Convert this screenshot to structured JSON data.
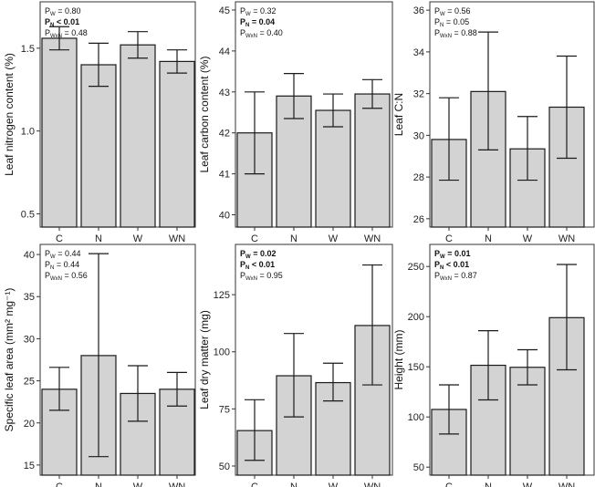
{
  "chart_data": [
    {
      "id": "nitrogen",
      "type": "bar",
      "ylabel": "Leaf nitrogen content (%)",
      "ylim": [
        0.42,
        1.78
      ],
      "yticks": [
        {
          "v": 0.5,
          "label": "0.5"
        },
        {
          "v": 1.0,
          "label": "1.0"
        },
        {
          "v": 1.5,
          "label": "1.5"
        }
      ],
      "categories": [
        "C",
        "N",
        "W",
        "WN"
      ],
      "values": [
        1.56,
        1.4,
        1.52,
        1.42
      ],
      "err_low": [
        1.49,
        1.27,
        1.44,
        1.35
      ],
      "err_high": [
        1.63,
        1.53,
        1.6,
        1.49
      ],
      "stats": [
        {
          "main": "P",
          "sub": "W",
          "value": " = 0.80",
          "bold": false
        },
        {
          "main": "P",
          "sub": "N",
          "value": " < 0.01",
          "bold": true
        },
        {
          "main": "P",
          "sub": "WxN",
          "value": " = 0.48",
          "bold": false
        }
      ]
    },
    {
      "id": "carbon",
      "type": "bar",
      "ylabel": "Leaf carbon content (%)",
      "ylim": [
        39.7,
        45.2
      ],
      "yticks": [
        {
          "v": 40,
          "label": "40"
        },
        {
          "v": 41,
          "label": "41"
        },
        {
          "v": 42,
          "label": "42"
        },
        {
          "v": 43,
          "label": "43"
        },
        {
          "v": 44,
          "label": "44"
        },
        {
          "v": 45,
          "label": "45"
        }
      ],
      "categories": [
        "C",
        "N",
        "W",
        "WN"
      ],
      "values": [
        42.0,
        42.9,
        42.55,
        42.95
      ],
      "err_low": [
        41.0,
        42.35,
        42.15,
        42.6
      ],
      "err_high": [
        43.0,
        43.45,
        42.95,
        43.3
      ],
      "stats": [
        {
          "main": "P",
          "sub": "W",
          "value": " = 0.32",
          "bold": false
        },
        {
          "main": "P",
          "sub": "N",
          "value": " = 0.04",
          "bold": true
        },
        {
          "main": "P",
          "sub": "WxN",
          "value": " = 0.40",
          "bold": false
        }
      ]
    },
    {
      "id": "cn",
      "type": "bar",
      "ylabel": "Leaf C:N",
      "ylim": [
        25.6,
        36.4
      ],
      "yticks": [
        {
          "v": 26,
          "label": "26"
        },
        {
          "v": 28,
          "label": "28"
        },
        {
          "v": 30,
          "label": "30"
        },
        {
          "v": 32,
          "label": "32"
        },
        {
          "v": 34,
          "label": "34"
        },
        {
          "v": 36,
          "label": "36"
        }
      ],
      "categories": [
        "C",
        "N",
        "W",
        "WN"
      ],
      "values": [
        29.8,
        32.1,
        29.35,
        31.35
      ],
      "err_low": [
        27.85,
        29.3,
        27.85,
        28.9
      ],
      "err_high": [
        31.8,
        34.95,
        30.9,
        33.8
      ],
      "stats": [
        {
          "main": "P",
          "sub": "W",
          "value": " = 0.56",
          "bold": false
        },
        {
          "main": "P",
          "sub": "N",
          "value": " = 0.05",
          "bold": false
        },
        {
          "main": "P",
          "sub": "WxN",
          "value": " = 0.88",
          "bold": false
        }
      ]
    },
    {
      "id": "sla",
      "type": "bar",
      "ylabel": "Specific leaf area (mm² mg⁻¹)",
      "ylim": [
        13.8,
        41.2
      ],
      "yticks": [
        {
          "v": 15,
          "label": "15"
        },
        {
          "v": 20,
          "label": "20"
        },
        {
          "v": 25,
          "label": "25"
        },
        {
          "v": 30,
          "label": "30"
        },
        {
          "v": 35,
          "label": "35"
        },
        {
          "v": 40,
          "label": "40"
        }
      ],
      "categories": [
        "C",
        "N",
        "W",
        "WN"
      ],
      "values": [
        24.0,
        28.0,
        23.5,
        24.0
      ],
      "err_low": [
        21.5,
        16.0,
        20.2,
        22.0
      ],
      "err_high": [
        26.6,
        40.1,
        26.8,
        26.0
      ],
      "stats": [
        {
          "main": "P",
          "sub": "W",
          "value": " = 0.44",
          "bold": false
        },
        {
          "main": "P",
          "sub": "N",
          "value": " = 0.44",
          "bold": false
        },
        {
          "main": "P",
          "sub": "WxN",
          "value": " = 0.56",
          "bold": false
        }
      ]
    },
    {
      "id": "drymatter",
      "type": "bar",
      "ylabel": "Leaf dry matter (mg)",
      "ylim": [
        46,
        147
      ],
      "yticks": [
        {
          "v": 50,
          "label": "50"
        },
        {
          "v": 75,
          "label": "75"
        },
        {
          "v": 100,
          "label": "100"
        },
        {
          "v": 125,
          "label": "125"
        }
      ],
      "categories": [
        "C",
        "N",
        "W",
        "WN"
      ],
      "values": [
        65.5,
        89.5,
        86.5,
        111.5
      ],
      "err_low": [
        52.5,
        71.5,
        78.5,
        85.5
      ],
      "err_high": [
        79.0,
        108.0,
        95.0,
        138.0
      ],
      "stats": [
        {
          "main": "P",
          "sub": "W",
          "value": " = 0.02",
          "bold": true
        },
        {
          "main": "P",
          "sub": "N",
          "value": " < 0.01",
          "bold": true
        },
        {
          "main": "P",
          "sub": "WxN",
          "value": " = 0.95",
          "bold": false
        }
      ]
    },
    {
      "id": "height",
      "type": "bar",
      "ylabel": "Height (mm)",
      "ylim": [
        42,
        272
      ],
      "yticks": [
        {
          "v": 50,
          "label": "50"
        },
        {
          "v": 100,
          "label": "100"
        },
        {
          "v": 150,
          "label": "150"
        },
        {
          "v": 200,
          "label": "200"
        },
        {
          "v": 250,
          "label": "250"
        }
      ],
      "categories": [
        "C",
        "N",
        "W",
        "WN"
      ],
      "values": [
        107.5,
        151.5,
        149.5,
        199.0
      ],
      "err_low": [
        83.0,
        117.0,
        132.0,
        147.0
      ],
      "err_high": [
        132.0,
        186.0,
        167.0,
        252.0
      ],
      "stats": [
        {
          "main": "P",
          "sub": "W",
          "value": " = 0.01",
          "bold": true
        },
        {
          "main": "P",
          "sub": "N",
          "value": " < 0.01",
          "bold": true
        },
        {
          "main": "P",
          "sub": "WxN",
          "value": " = 0.87",
          "bold": false
        }
      ]
    }
  ],
  "colors": {
    "bar_fill": "#d3d3d3",
    "bar_stroke": "#1a1a1a",
    "frame": "#333333",
    "background": "#ffffff"
  }
}
